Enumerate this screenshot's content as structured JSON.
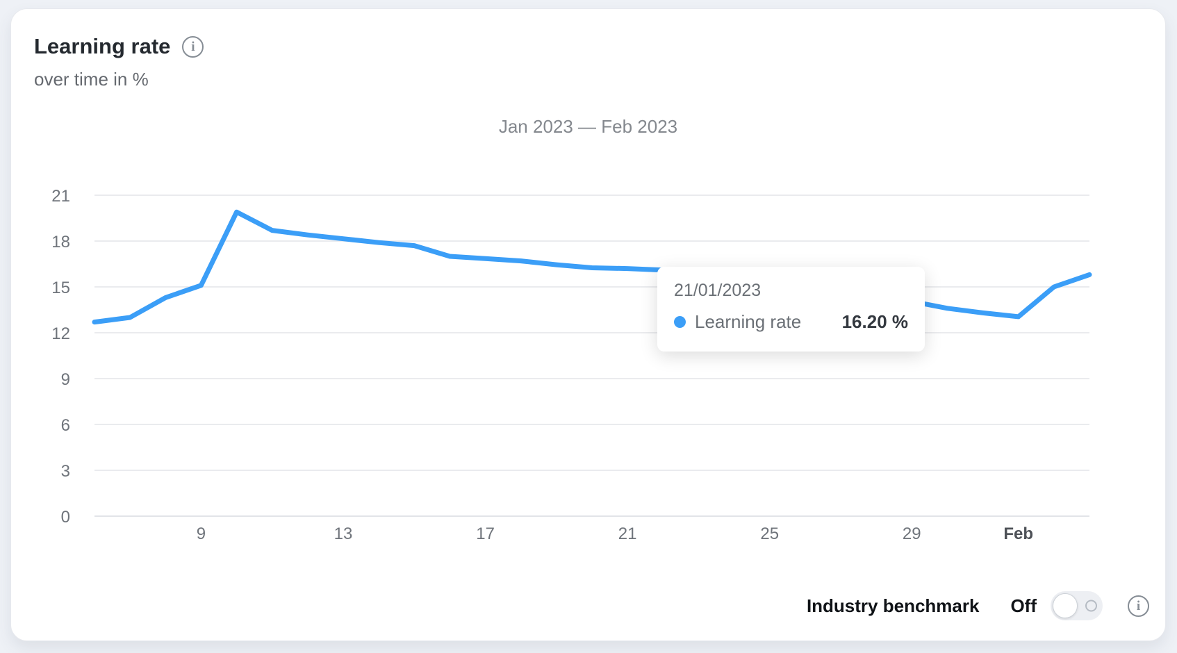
{
  "card": {
    "title": "Learning rate",
    "subtitle": "over time in %"
  },
  "icons": {
    "info_glyph": "i"
  },
  "chart_data": {
    "type": "line",
    "title": "Jan 2023 — Feb 2023",
    "unit": "%",
    "legend_position": "none",
    "grid": "horizontal",
    "ylim": [
      0,
      21
    ],
    "y_ticks": [
      0,
      3,
      6,
      9,
      12,
      15,
      18,
      21
    ],
    "x_ticks": [
      {
        "day": 9,
        "label": "9",
        "bold": false
      },
      {
        "day": 13,
        "label": "13",
        "bold": false
      },
      {
        "day": 17,
        "label": "17",
        "bold": false
      },
      {
        "day": 21,
        "label": "21",
        "bold": false
      },
      {
        "day": 25,
        "label": "25",
        "bold": false
      },
      {
        "day": 29,
        "label": "29",
        "bold": false
      },
      {
        "day": 32,
        "label": "Feb",
        "bold": true
      }
    ],
    "series": [
      {
        "name": "Learning rate",
        "color": "#3b9ef7",
        "x_days": [
          6,
          7,
          8,
          9,
          10,
          11,
          12,
          13,
          14,
          15,
          16,
          17,
          18,
          19,
          20,
          21,
          22,
          23,
          24,
          25,
          26,
          27,
          28,
          29,
          30,
          31,
          32,
          33,
          34
        ],
        "values": [
          12.7,
          13.0,
          14.3,
          15.1,
          19.9,
          18.7,
          18.4,
          18.15,
          17.9,
          17.7,
          17.0,
          16.85,
          16.7,
          16.45,
          16.25,
          16.2,
          16.1,
          15.8,
          15.5,
          15.2,
          14.9,
          14.6,
          14.3,
          14.05,
          13.6,
          13.3,
          13.05,
          15.0,
          15.8
        ]
      }
    ]
  },
  "tooltip": {
    "date": "21/01/2023",
    "series_label": "Learning rate",
    "value": "16.20 %"
  },
  "benchmark": {
    "label": "Industry benchmark",
    "state_label": "Off",
    "toggle_on": false
  }
}
